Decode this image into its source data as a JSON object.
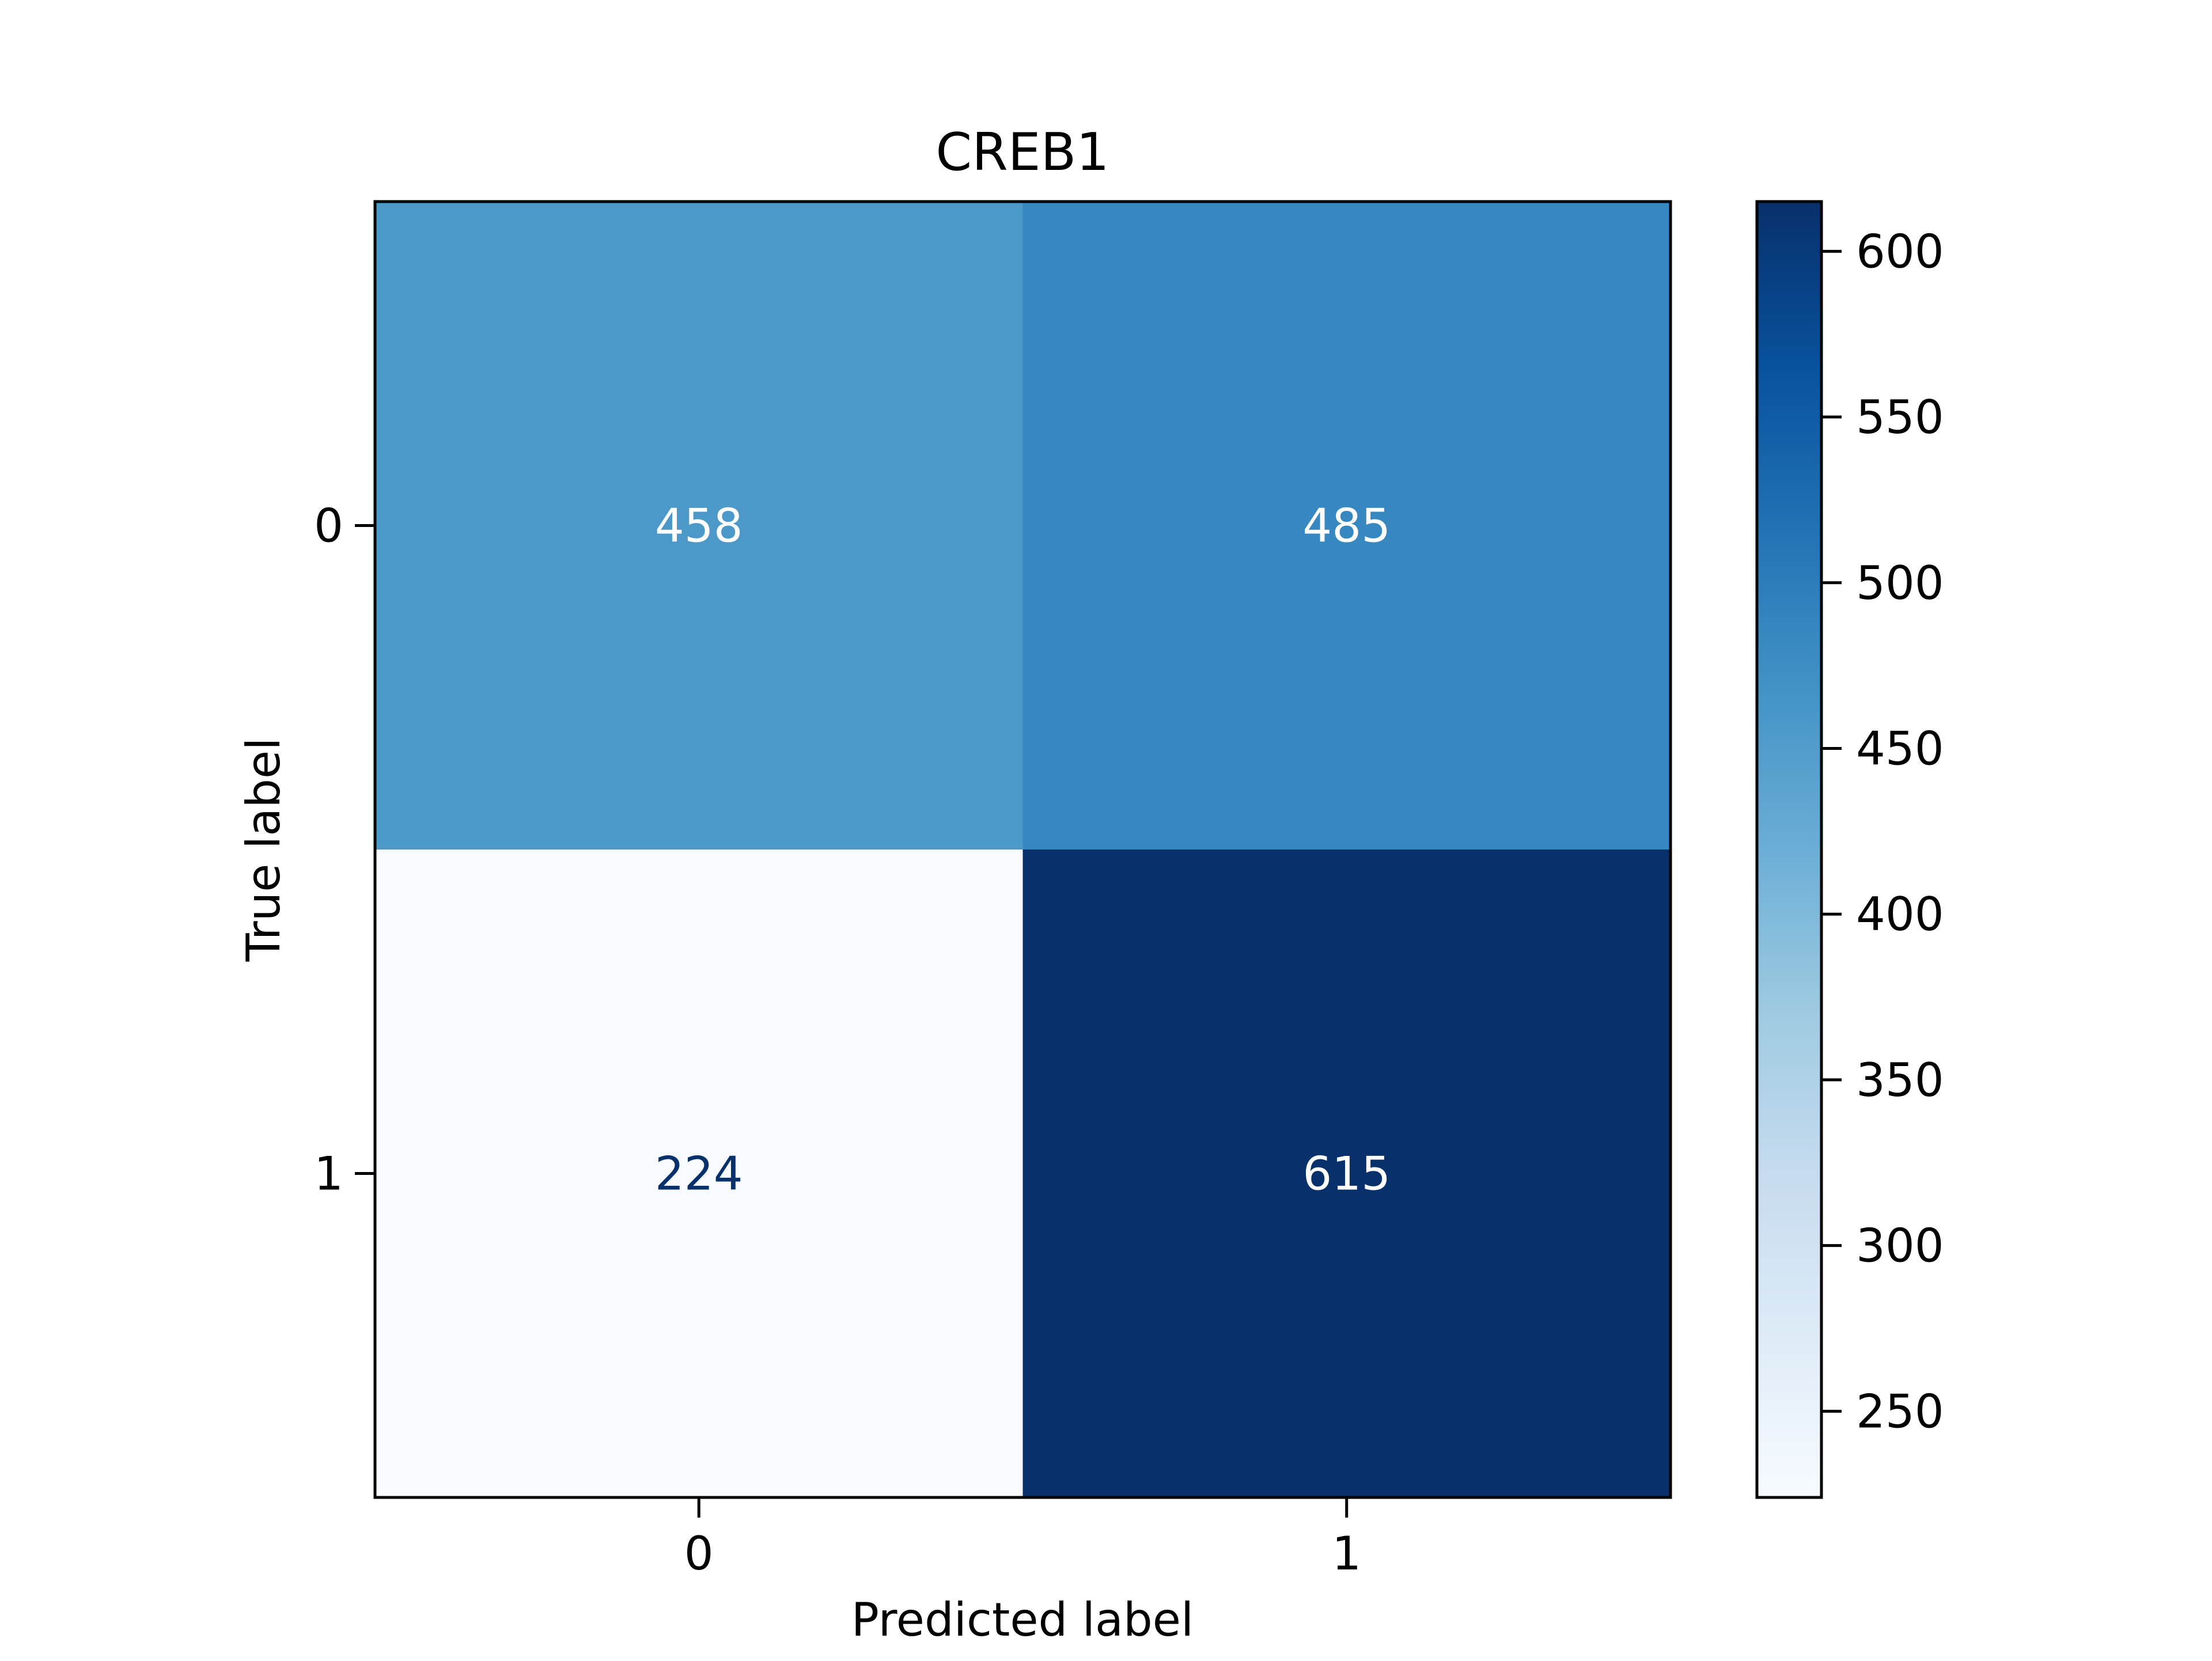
{
  "chart_data": {
    "type": "heatmap",
    "title": "CREB1",
    "xlabel": "Predicted label",
    "ylabel": "True label",
    "x_categories": [
      "0",
      "1"
    ],
    "y_categories": [
      "0",
      "1"
    ],
    "values": [
      [
        458,
        485
      ],
      [
        224,
        615
      ]
    ],
    "colormap": "Blues",
    "colorbar": {
      "min": 224,
      "max": 615,
      "ticks": [
        "250",
        "300",
        "350",
        "400",
        "450",
        "500",
        "550",
        "600"
      ]
    },
    "grid": false
  }
}
